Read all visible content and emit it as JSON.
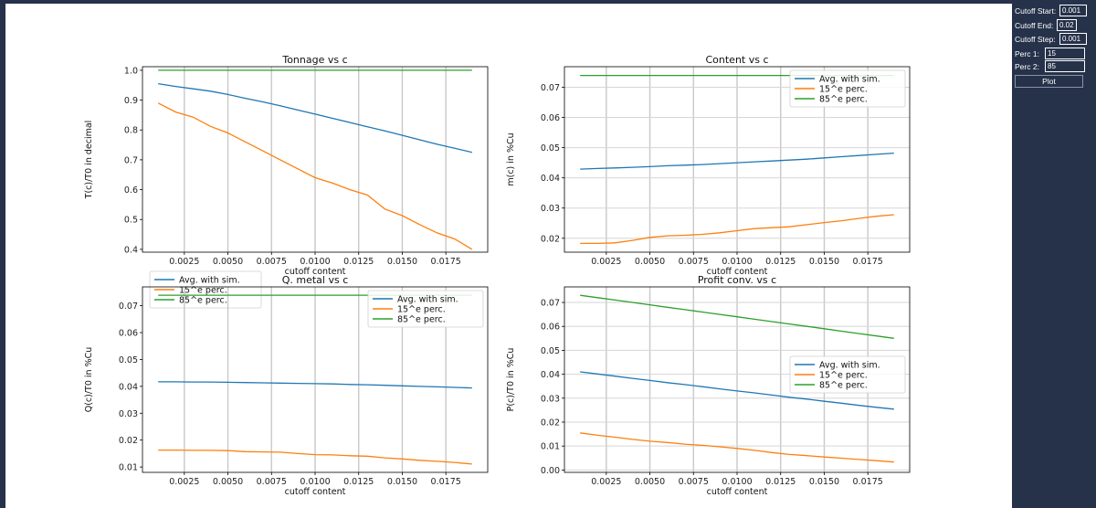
{
  "controls": {
    "cutoff_start_label": "Cutoff Start:",
    "cutoff_start_value": "0.001",
    "cutoff_end_label": "Cutoff End:",
    "cutoff_end_value": "0.02",
    "cutoff_step_label": "Cutoff Step:",
    "cutoff_step_value": "0.001",
    "perc1_label": "Perc 1:",
    "perc1_value": "15",
    "perc2_label": "Perc 2:",
    "perc2_value": "85",
    "plot_button_label": "Plot"
  },
  "colors": {
    "avg": "#1f77b4",
    "p15": "#ff7f0e",
    "p85": "#2ca02c",
    "panel_bg": "#26324a"
  },
  "chart_data": [
    {
      "type": "line",
      "title": "Tonnage vs c",
      "xlabel": "cutoff content",
      "ylabel": "T(c)/T0 in decimal",
      "x": [
        0.001,
        0.002,
        0.003,
        0.004,
        0.005,
        0.006,
        0.007,
        0.008,
        0.009,
        0.01,
        0.011,
        0.012,
        0.013,
        0.014,
        0.015,
        0.016,
        0.017,
        0.018,
        0.019
      ],
      "series": [
        {
          "name": "Avg. with sim.",
          "values": [
            0.955,
            0.946,
            0.938,
            0.93,
            0.919,
            0.906,
            0.894,
            0.881,
            0.867,
            0.853,
            0.839,
            0.825,
            0.811,
            0.797,
            0.782,
            0.767,
            0.752,
            0.739,
            0.725
          ]
        },
        {
          "name": "15^e perc.",
          "values": [
            0.89,
            0.86,
            0.843,
            0.812,
            0.79,
            0.76,
            0.73,
            0.7,
            0.67,
            0.64,
            0.622,
            0.6,
            0.582,
            0.535,
            0.513,
            0.483,
            0.455,
            0.435,
            0.4
          ]
        },
        {
          "name": "85^e perc.",
          "values": [
            1.0,
            1.0,
            1.0,
            1.0,
            1.0,
            1.0,
            1.0,
            1.0,
            1.0,
            1.0,
            1.0,
            1.0,
            1.0,
            1.0,
            1.0,
            1.0,
            1.0,
            1.0,
            1.0
          ]
        }
      ],
      "xticks": [
        "0.0025",
        "0.0050",
        "0.0075",
        "0.0100",
        "0.0125",
        "0.0150",
        "0.0175"
      ],
      "yticks": [
        "0.4",
        "0.5",
        "0.6",
        "0.7",
        "0.8",
        "0.9",
        "1.0"
      ],
      "xlim": [
        0.0001,
        0.0199
      ],
      "ylim": [
        0.3905,
        1.012
      ],
      "grid": "x",
      "legend": "lower-left"
    },
    {
      "type": "line",
      "title": "Content vs c",
      "xlabel": "cutoff content",
      "ylabel": "m(c) in %Cu",
      "x": [
        0.001,
        0.002,
        0.003,
        0.004,
        0.005,
        0.006,
        0.007,
        0.008,
        0.009,
        0.01,
        0.011,
        0.012,
        0.013,
        0.014,
        0.015,
        0.016,
        0.017,
        0.018,
        0.019
      ],
      "series": [
        {
          "name": "Avg. with sim.",
          "values": [
            0.0429,
            0.0431,
            0.0433,
            0.0435,
            0.0437,
            0.044,
            0.0442,
            0.0444,
            0.0447,
            0.045,
            0.0453,
            0.0456,
            0.0459,
            0.0462,
            0.0466,
            0.047,
            0.0474,
            0.0478,
            0.0482
          ]
        },
        {
          "name": "15^e perc.",
          "values": [
            0.0183,
            0.0183,
            0.0185,
            0.0193,
            0.0203,
            0.0208,
            0.021,
            0.0213,
            0.0218,
            0.0225,
            0.0232,
            0.0235,
            0.0238,
            0.0245,
            0.0252,
            0.0258,
            0.0266,
            0.0273,
            0.0278
          ]
        },
        {
          "name": "85^e perc.",
          "values": [
            0.0739,
            0.0739,
            0.0739,
            0.0739,
            0.0739,
            0.0739,
            0.0739,
            0.0739,
            0.0739,
            0.0739,
            0.0739,
            0.0739,
            0.0739,
            0.0739,
            0.0739,
            0.0739,
            0.0739,
            0.0739,
            0.0739
          ]
        }
      ],
      "xticks": [
        "0.0025",
        "0.0050",
        "0.0075",
        "0.0100",
        "0.0125",
        "0.0150",
        "0.0175"
      ],
      "yticks": [
        "0.02",
        "0.03",
        "0.04",
        "0.05",
        "0.06",
        "0.07"
      ],
      "xlim": [
        0.0001,
        0.0199
      ],
      "ylim": [
        0.0154,
        0.0768
      ],
      "grid": "both",
      "legend": "upper-right"
    },
    {
      "type": "line",
      "title": "Q. metal vs c",
      "xlabel": "cutoff content",
      "ylabel": "Q(c)/T0 in %Cu",
      "x": [
        0.001,
        0.002,
        0.003,
        0.004,
        0.005,
        0.006,
        0.007,
        0.008,
        0.009,
        0.01,
        0.011,
        0.012,
        0.013,
        0.014,
        0.015,
        0.016,
        0.017,
        0.018,
        0.019
      ],
      "series": [
        {
          "name": "Avg. with sim.",
          "values": [
            0.0417,
            0.0417,
            0.0416,
            0.0416,
            0.0415,
            0.0414,
            0.0413,
            0.0412,
            0.0411,
            0.041,
            0.0409,
            0.0407,
            0.0406,
            0.0404,
            0.0402,
            0.04,
            0.0398,
            0.0396,
            0.0394
          ]
        },
        {
          "name": "15^e perc.",
          "values": [
            0.0163,
            0.0163,
            0.0162,
            0.0162,
            0.0161,
            0.0157,
            0.0156,
            0.0155,
            0.015,
            0.0146,
            0.0145,
            0.0142,
            0.014,
            0.0134,
            0.013,
            0.0125,
            0.0121,
            0.0117,
            0.0111
          ]
        },
        {
          "name": "85^e perc.",
          "values": [
            0.0739,
            0.0739,
            0.0739,
            0.0739,
            0.0739,
            0.0739,
            0.0739,
            0.0739,
            0.0739,
            0.0739,
            0.0739,
            0.0739,
            0.0739,
            0.0739,
            0.0739,
            0.0739,
            0.0739,
            0.0739,
            0.0739
          ]
        }
      ],
      "xticks": [
        "0.0025",
        "0.0050",
        "0.0075",
        "0.0100",
        "0.0125",
        "0.0150",
        "0.0175"
      ],
      "yticks": [
        "0.01",
        "0.02",
        "0.03",
        "0.04",
        "0.05",
        "0.06",
        "0.07"
      ],
      "xlim": [
        0.0001,
        0.0199
      ],
      "ylim": [
        0.008,
        0.077
      ],
      "grid": "x",
      "legend": "upper-right"
    },
    {
      "type": "line",
      "title": "Profit conv. vs c",
      "xlabel": "cutoff content",
      "ylabel": "P(c)/T0 in %Cu",
      "x": [
        0.001,
        0.002,
        0.003,
        0.004,
        0.005,
        0.006,
        0.007,
        0.008,
        0.009,
        0.01,
        0.011,
        0.012,
        0.013,
        0.014,
        0.015,
        0.016,
        0.017,
        0.018,
        0.019
      ],
      "series": [
        {
          "name": "Avg. with sim.",
          "values": [
            0.041,
            0.0401,
            0.0392,
            0.0383,
            0.0374,
            0.0365,
            0.0357,
            0.0348,
            0.0339,
            0.033,
            0.0322,
            0.0313,
            0.0304,
            0.0296,
            0.0287,
            0.0279,
            0.027,
            0.0262,
            0.0254
          ]
        },
        {
          "name": "15^e perc.",
          "values": [
            0.0155,
            0.0145,
            0.0137,
            0.0128,
            0.012,
            0.0115,
            0.0108,
            0.0103,
            0.0097,
            0.009,
            0.0082,
            0.0073,
            0.0065,
            0.006,
            0.0054,
            0.0049,
            0.0044,
            0.0039,
            0.0033
          ]
        },
        {
          "name": "85^e perc.",
          "values": [
            0.073,
            0.072,
            0.071,
            0.07,
            0.069,
            0.068,
            0.067,
            0.066,
            0.065,
            0.064,
            0.063,
            0.062,
            0.061,
            0.06,
            0.059,
            0.058,
            0.057,
            0.056,
            0.055
          ]
        }
      ],
      "xticks": [
        "0.0025",
        "0.0050",
        "0.0075",
        "0.0100",
        "0.0125",
        "0.0150",
        "0.0175"
      ],
      "yticks": [
        "0.00",
        "0.01",
        "0.02",
        "0.03",
        "0.04",
        "0.05",
        "0.06",
        "0.07"
      ],
      "xlim": [
        0.0001,
        0.0199
      ],
      "ylim": [
        -0.001,
        0.0765
      ],
      "grid": "both",
      "legend": "center-right"
    }
  ]
}
